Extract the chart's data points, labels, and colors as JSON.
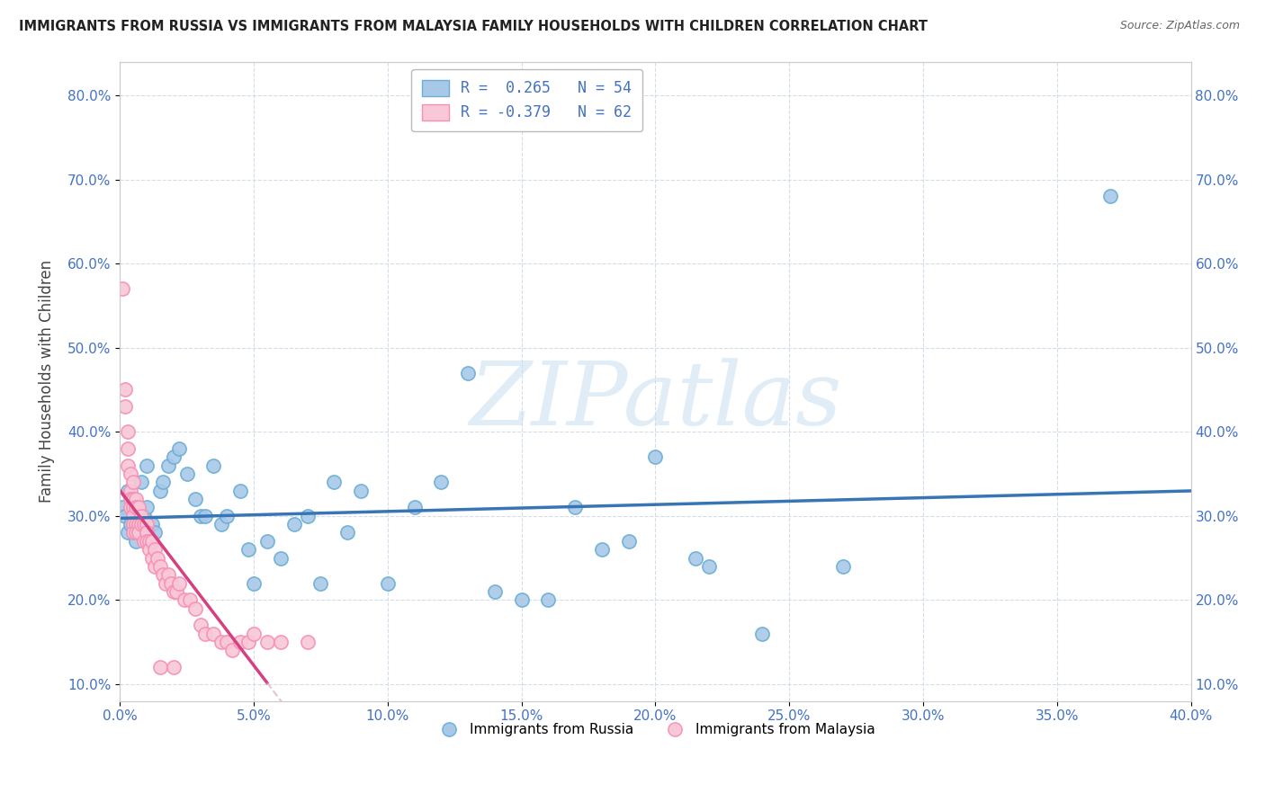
{
  "title": "IMMIGRANTS FROM RUSSIA VS IMMIGRANTS FROM MALAYSIA FAMILY HOUSEHOLDS WITH CHILDREN CORRELATION CHART",
  "source": "Source: ZipAtlas.com",
  "ylabel": "Family Households with Children",
  "legend_blue_label": "Immigrants from Russia",
  "legend_pink_label": "Immigrants from Malaysia",
  "R_blue": 0.265,
  "N_blue": 54,
  "R_pink": -0.379,
  "N_pink": 62,
  "xlim": [
    0.0,
    0.4
  ],
  "ylim": [
    0.08,
    0.84
  ],
  "x_ticks": [
    0.0,
    0.05,
    0.1,
    0.15,
    0.2,
    0.25,
    0.3,
    0.35,
    0.4
  ],
  "y_ticks": [
    0.1,
    0.2,
    0.3,
    0.4,
    0.5,
    0.6,
    0.7,
    0.8
  ],
  "watermark": "ZIPatlas",
  "blue_color": "#a8c8e8",
  "blue_edge_color": "#6baed6",
  "pink_color": "#f8c8d8",
  "pink_edge_color": "#f78fb3",
  "blue_line_color": "#3875b5",
  "pink_line_color": "#d44080",
  "pink_line_dashed_color": "#d0b0c0",
  "blue_scatter": [
    [
      0.001,
      0.31
    ],
    [
      0.002,
      0.3
    ],
    [
      0.003,
      0.28
    ],
    [
      0.003,
      0.33
    ],
    [
      0.004,
      0.29
    ],
    [
      0.005,
      0.28
    ],
    [
      0.005,
      0.32
    ],
    [
      0.006,
      0.27
    ],
    [
      0.007,
      0.3
    ],
    [
      0.008,
      0.34
    ],
    [
      0.009,
      0.3
    ],
    [
      0.01,
      0.31
    ],
    [
      0.01,
      0.36
    ],
    [
      0.012,
      0.29
    ],
    [
      0.013,
      0.28
    ],
    [
      0.015,
      0.33
    ],
    [
      0.016,
      0.34
    ],
    [
      0.018,
      0.36
    ],
    [
      0.02,
      0.37
    ],
    [
      0.022,
      0.38
    ],
    [
      0.025,
      0.35
    ],
    [
      0.028,
      0.32
    ],
    [
      0.03,
      0.3
    ],
    [
      0.032,
      0.3
    ],
    [
      0.035,
      0.36
    ],
    [
      0.038,
      0.29
    ],
    [
      0.04,
      0.3
    ],
    [
      0.045,
      0.33
    ],
    [
      0.048,
      0.26
    ],
    [
      0.05,
      0.22
    ],
    [
      0.055,
      0.27
    ],
    [
      0.06,
      0.25
    ],
    [
      0.065,
      0.29
    ],
    [
      0.07,
      0.3
    ],
    [
      0.075,
      0.22
    ],
    [
      0.08,
      0.34
    ],
    [
      0.085,
      0.28
    ],
    [
      0.09,
      0.33
    ],
    [
      0.1,
      0.22
    ],
    [
      0.11,
      0.31
    ],
    [
      0.12,
      0.34
    ],
    [
      0.13,
      0.47
    ],
    [
      0.14,
      0.21
    ],
    [
      0.15,
      0.2
    ],
    [
      0.16,
      0.2
    ],
    [
      0.17,
      0.31
    ],
    [
      0.18,
      0.26
    ],
    [
      0.19,
      0.27
    ],
    [
      0.2,
      0.37
    ],
    [
      0.215,
      0.25
    ],
    [
      0.22,
      0.24
    ],
    [
      0.24,
      0.16
    ],
    [
      0.27,
      0.24
    ],
    [
      0.37,
      0.68
    ]
  ],
  "pink_scatter": [
    [
      0.001,
      0.57
    ],
    [
      0.002,
      0.45
    ],
    [
      0.002,
      0.43
    ],
    [
      0.003,
      0.4
    ],
    [
      0.003,
      0.38
    ],
    [
      0.003,
      0.36
    ],
    [
      0.004,
      0.35
    ],
    [
      0.004,
      0.33
    ],
    [
      0.004,
      0.32
    ],
    [
      0.004,
      0.31
    ],
    [
      0.005,
      0.34
    ],
    [
      0.005,
      0.32
    ],
    [
      0.005,
      0.31
    ],
    [
      0.005,
      0.3
    ],
    [
      0.005,
      0.29
    ],
    [
      0.005,
      0.28
    ],
    [
      0.006,
      0.32
    ],
    [
      0.006,
      0.31
    ],
    [
      0.006,
      0.29
    ],
    [
      0.006,
      0.28
    ],
    [
      0.007,
      0.31
    ],
    [
      0.007,
      0.29
    ],
    [
      0.007,
      0.28
    ],
    [
      0.008,
      0.3
    ],
    [
      0.008,
      0.29
    ],
    [
      0.009,
      0.29
    ],
    [
      0.009,
      0.27
    ],
    [
      0.01,
      0.29
    ],
    [
      0.01,
      0.28
    ],
    [
      0.01,
      0.27
    ],
    [
      0.011,
      0.27
    ],
    [
      0.011,
      0.26
    ],
    [
      0.012,
      0.27
    ],
    [
      0.012,
      0.25
    ],
    [
      0.013,
      0.26
    ],
    [
      0.013,
      0.24
    ],
    [
      0.014,
      0.25
    ],
    [
      0.015,
      0.24
    ],
    [
      0.016,
      0.23
    ],
    [
      0.017,
      0.22
    ],
    [
      0.018,
      0.23
    ],
    [
      0.019,
      0.22
    ],
    [
      0.02,
      0.21
    ],
    [
      0.021,
      0.21
    ],
    [
      0.022,
      0.22
    ],
    [
      0.024,
      0.2
    ],
    [
      0.026,
      0.2
    ],
    [
      0.028,
      0.19
    ],
    [
      0.03,
      0.17
    ],
    [
      0.032,
      0.16
    ],
    [
      0.035,
      0.16
    ],
    [
      0.038,
      0.15
    ],
    [
      0.04,
      0.15
    ],
    [
      0.042,
      0.14
    ],
    [
      0.045,
      0.15
    ],
    [
      0.048,
      0.15
    ],
    [
      0.05,
      0.16
    ],
    [
      0.055,
      0.15
    ],
    [
      0.06,
      0.15
    ],
    [
      0.07,
      0.15
    ],
    [
      0.015,
      0.12
    ],
    [
      0.02,
      0.12
    ]
  ],
  "blue_trendline": [
    0.0,
    0.4
  ],
  "pink_trendline_solid": [
    0.0,
    0.055
  ],
  "pink_trendline_dashed": [
    0.055,
    0.2
  ]
}
